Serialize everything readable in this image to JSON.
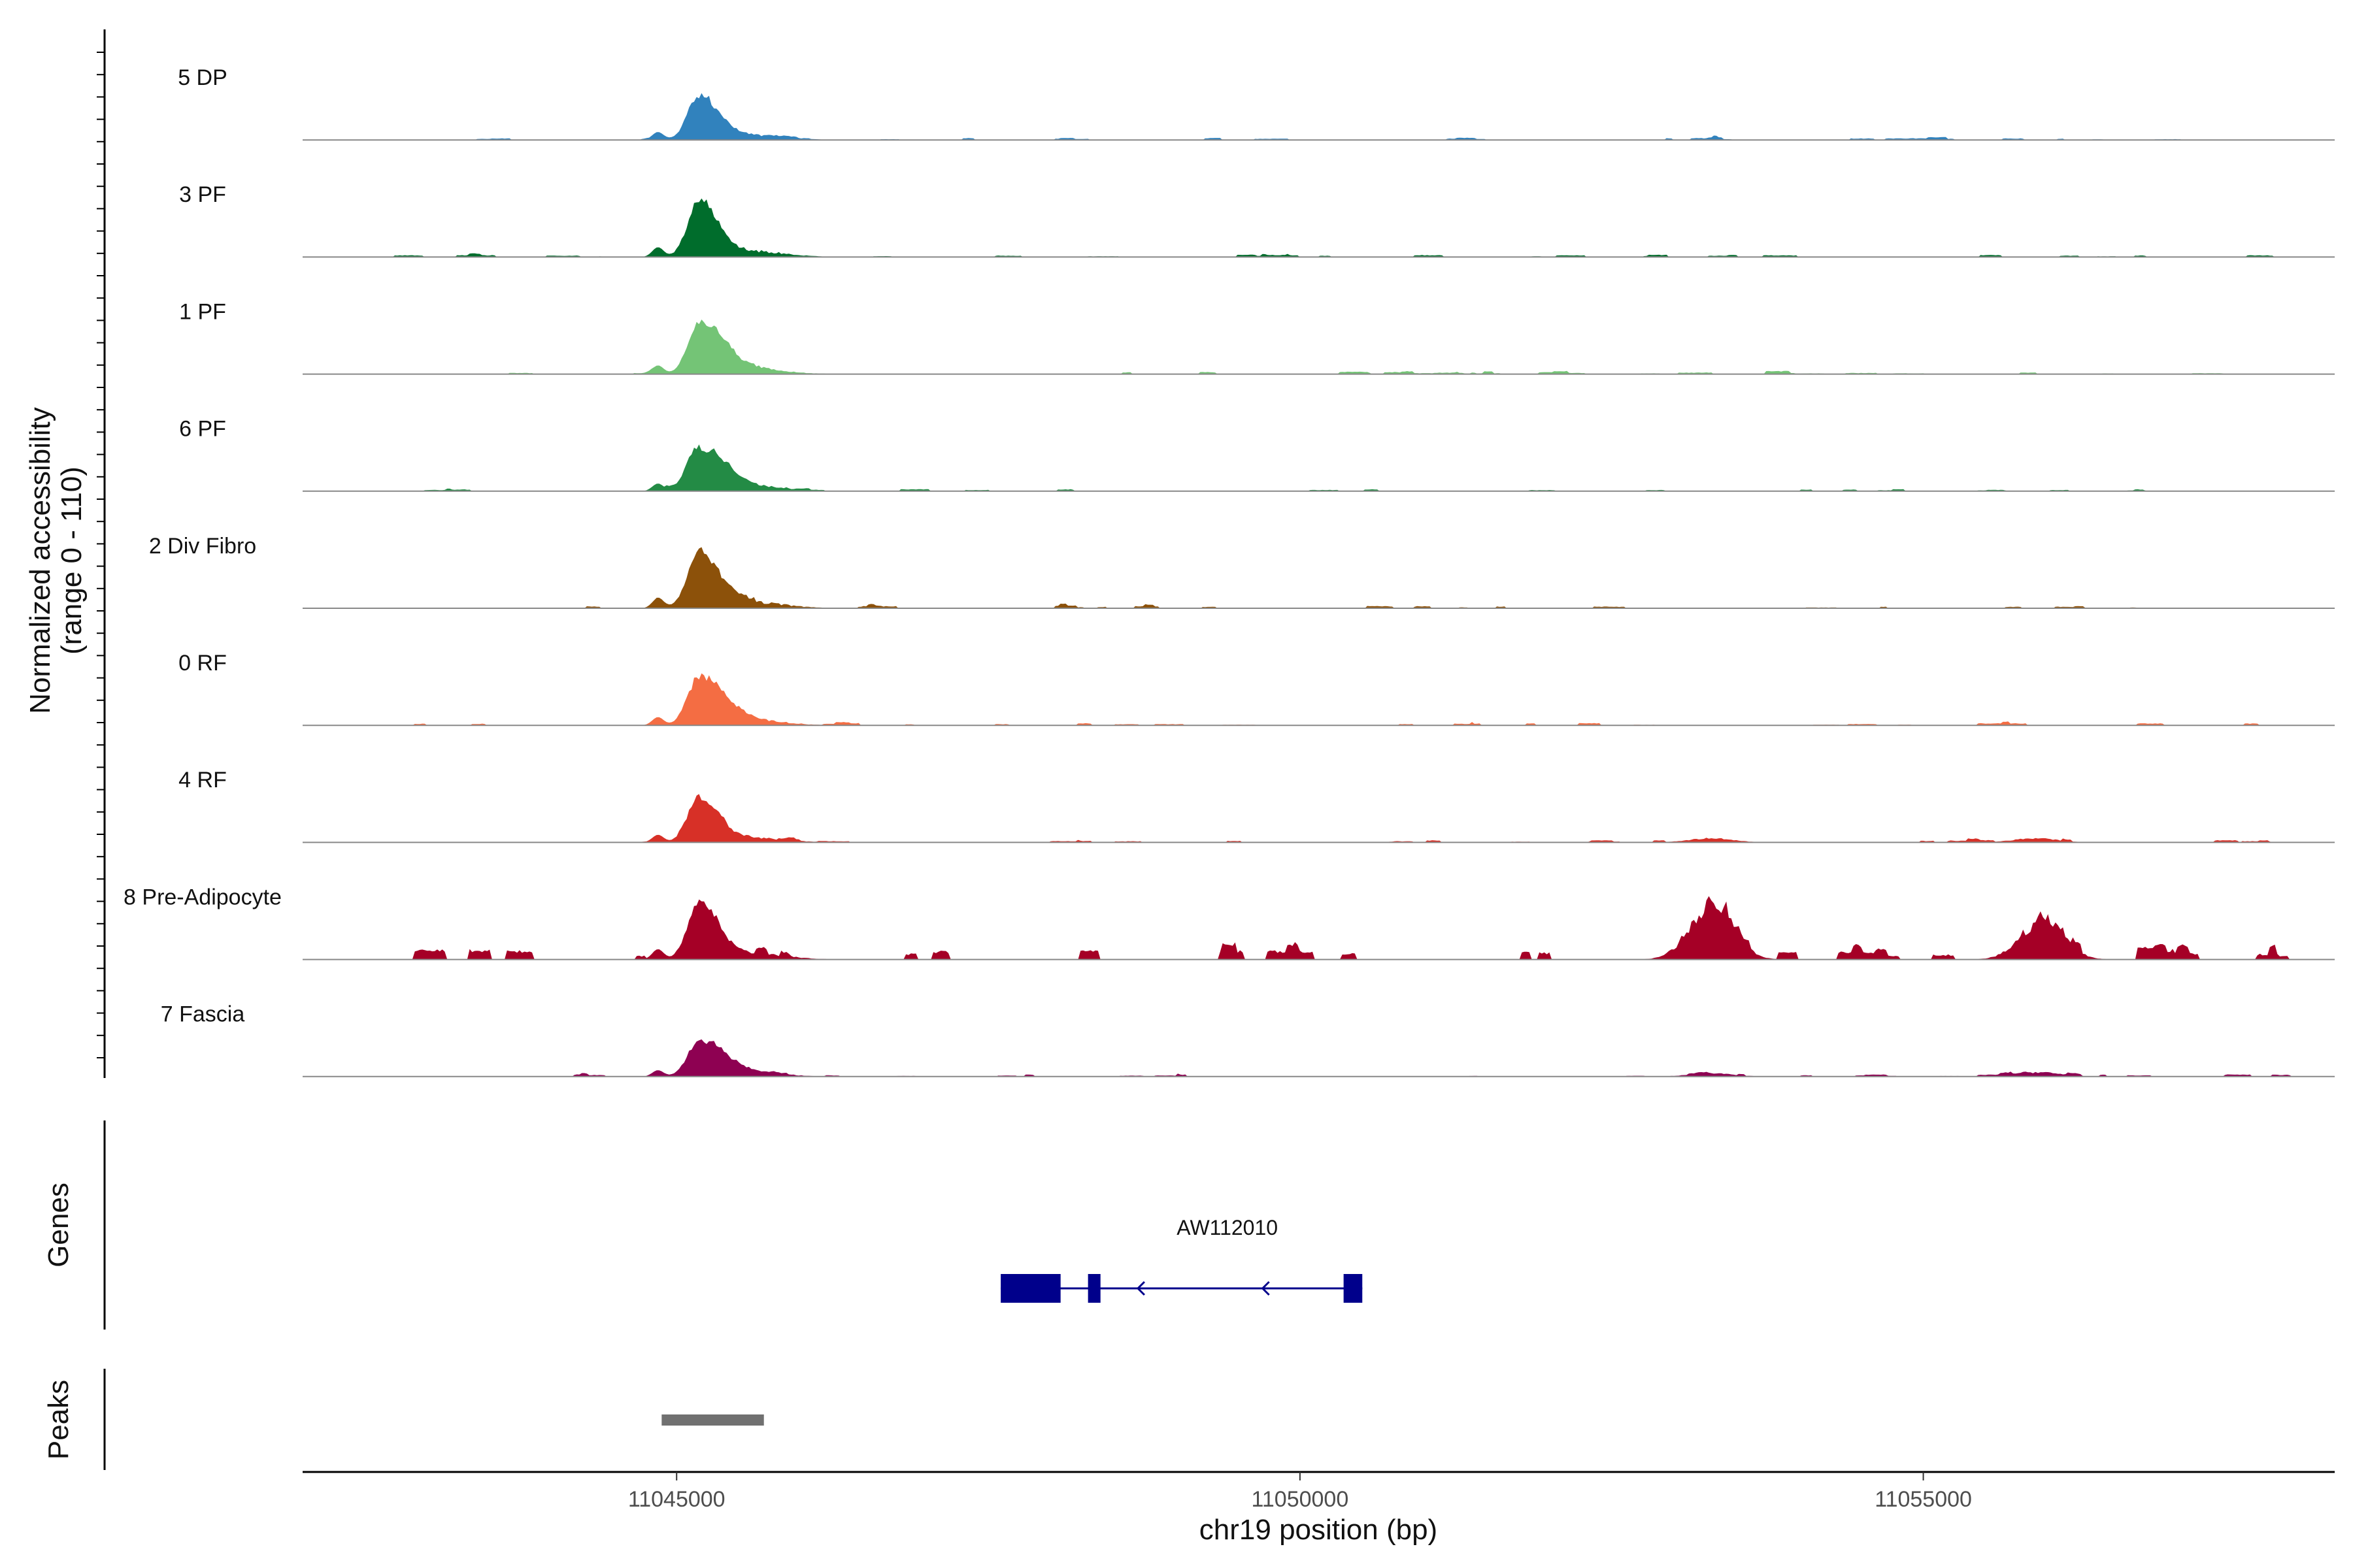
{
  "chart_data": {
    "type": "area",
    "title": "",
    "chromosome": "chr19",
    "xlabel": "chr19 position (bp)",
    "ylabel": "Normalized accessibility",
    "ylabel_range": "(range 0 - 110)",
    "xlim": [
      11042000,
      11058300
    ],
    "xticks": [
      11045000,
      11050000,
      11055000
    ],
    "xtick_labels": [
      "11045000",
      "11050000",
      "11055000"
    ],
    "ylim": [
      0,
      110
    ],
    "main_peak_bp": 11045180,
    "series": [
      {
        "name": "5 DP",
        "color": "#3182BD",
        "peak": 50,
        "secondary": [],
        "profile": "A"
      },
      {
        "name": "3 PF",
        "color": "#006D2C",
        "peak": 62,
        "secondary": [],
        "profile": "A"
      },
      {
        "name": "1 PF",
        "color": "#74C476",
        "peak": 55,
        "secondary": [],
        "profile": "B"
      },
      {
        "name": "6 PF",
        "color": "#238B45",
        "peak": 48,
        "secondary": [],
        "profile": "B"
      },
      {
        "name": "2 Div Fibro",
        "color": "#8C510A",
        "peak": 64,
        "secondary": [],
        "profile": "A"
      },
      {
        "name": "0 RF",
        "color": "#F46D43",
        "peak": 52,
        "secondary": [],
        "profile": "B"
      },
      {
        "name": "4 RF",
        "color": "#D73027",
        "peak": 48,
        "secondary": [
          {
            "bp": 11053300,
            "value": 5
          },
          {
            "bp": 11055900,
            "value": 5
          }
        ],
        "profile": "A"
      },
      {
        "name": "8 Pre-Adipocyte",
        "color": "#A50026",
        "peak": 65,
        "secondary": [
          {
            "bp": 11053300,
            "value": 66
          },
          {
            "bp": 11055950,
            "value": 46
          }
        ],
        "profile": "C"
      },
      {
        "name": "7 Fascia",
        "color": "#8E0152",
        "peak": 40,
        "secondary": [
          {
            "bp": 11053300,
            "value": 4
          },
          {
            "bp": 11055950,
            "value": 5
          }
        ],
        "profile": "B"
      }
    ],
    "genes": {
      "label": "Genes",
      "items": [
        {
          "name": "AW112010",
          "start": 11047600,
          "end": 11050500,
          "strand": "-",
          "exons": [
            [
              11047600,
              11048080
            ],
            [
              11048300,
              11048400
            ],
            [
              11050350,
              11050500
            ]
          ]
        }
      ]
    },
    "peaks": {
      "label": "Peaks",
      "regions": [
        [
          11044880,
          11045700
        ]
      ]
    }
  }
}
